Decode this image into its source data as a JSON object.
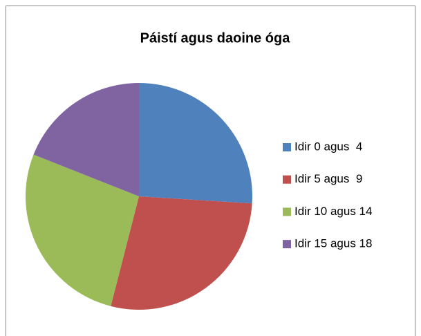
{
  "chart_data": {
    "type": "pie",
    "title": "Páistí agus daoine óga",
    "categories": [
      "Idir 0 agus  4",
      "Idir 5 agus  9",
      "Idir 10 agus 14",
      "Idir 15 agus 18"
    ],
    "values": [
      26,
      28,
      27,
      19
    ],
    "colors": [
      "#4f81bd",
      "#c0504d",
      "#9bbb59",
      "#8064a2"
    ],
    "legend": "right"
  }
}
